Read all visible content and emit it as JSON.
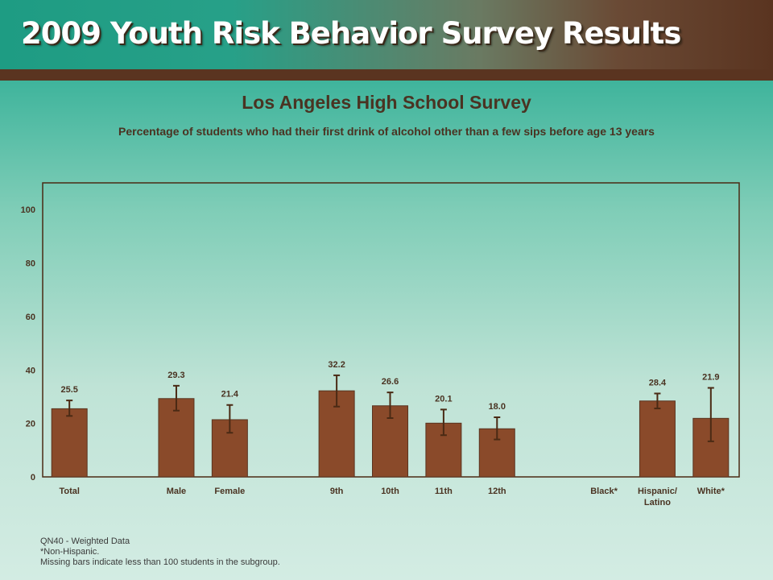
{
  "header": {
    "title": "2009 Youth Risk Behavior Survey Results"
  },
  "chart_title": "Los Angeles High School Survey",
  "chart_subtitle": "Percentage of students who had their first drink of alcohol other than a few sips before age 13 years",
  "colors": {
    "bar": "#8a4a2a",
    "bar_stroke": "#5a3420",
    "error_bar": "#4a2a14",
    "plot_border": "#4a2a14"
  },
  "chart_data": {
    "type": "bar",
    "title": "Los Angeles High School Survey",
    "subtitle": "Percentage of students who had their first drink of alcohol other than a few sips before age 13 years",
    "ylim": [
      0,
      110
    ],
    "yticks": [
      0,
      20,
      40,
      60,
      80,
      100
    ],
    "grid": false,
    "categories": [
      {
        "label": "Total",
        "value": 25.5,
        "ci": [
          22.8,
          28.6
        ]
      },
      {
        "label": "",
        "value": null
      },
      {
        "label": "Male",
        "value": 29.3,
        "ci": [
          24.8,
          34.1
        ]
      },
      {
        "label": "Female",
        "value": 21.4,
        "ci": [
          16.5,
          26.9
        ]
      },
      {
        "label": "",
        "value": null
      },
      {
        "label": "9th",
        "value": 32.2,
        "ci": [
          26.3,
          38.0
        ]
      },
      {
        "label": "10th",
        "value": 26.6,
        "ci": [
          22.0,
          31.6
        ]
      },
      {
        "label": "11th",
        "value": 20.1,
        "ci": [
          15.6,
          25.2
        ]
      },
      {
        "label": "12th",
        "value": 18.0,
        "ci": [
          14.0,
          22.3
        ]
      },
      {
        "label": "",
        "value": null
      },
      {
        "label": "Black*",
        "value": null
      },
      {
        "label": "Hispanic/\nLatino",
        "value": 28.4,
        "ci": [
          25.6,
          31.2
        ]
      },
      {
        "label": "White*",
        "value": 21.9,
        "ci": [
          13.3,
          33.3
        ]
      }
    ]
  },
  "footnotes": {
    "line1": "QN40 - Weighted Data",
    "line2": "*Non-Hispanic.",
    "line3": "Missing bars indicate less than 100 students in the subgroup."
  }
}
